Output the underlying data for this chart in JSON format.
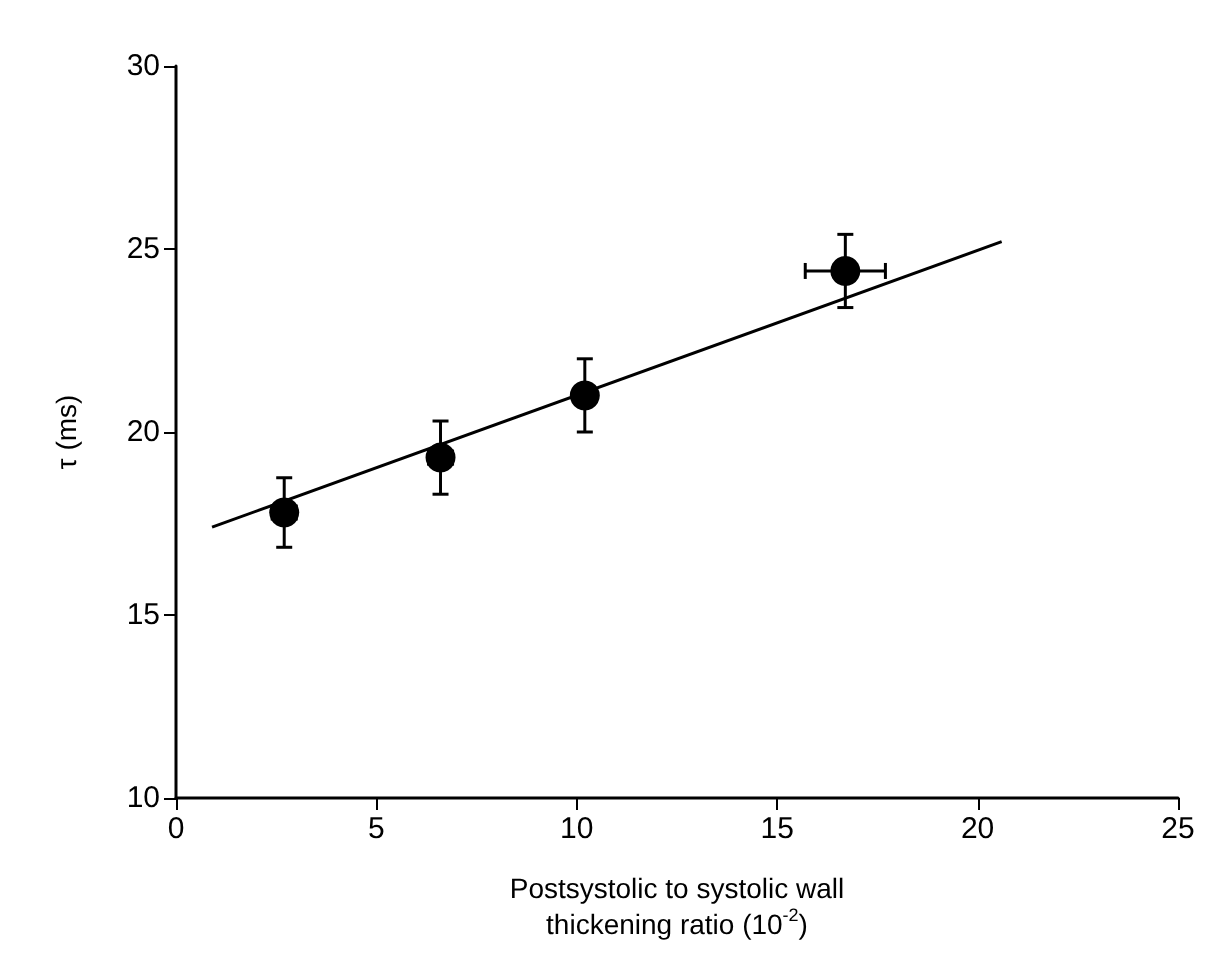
{
  "chart_data": {
    "type": "scatter",
    "xlabel": "Postsystolic to systolic wall\nthickening ratio (10$^{-2}$)",
    "ylabel": "τ (ms)",
    "xlim": [
      0,
      25
    ],
    "xticks": [
      0,
      5,
      10,
      15,
      20,
      25
    ],
    "ylim": [
      10,
      30
    ],
    "yticks": [
      10,
      15,
      20,
      25,
      30
    ],
    "grid": false,
    "marker": "circle",
    "series": [
      {
        "color": "#000000",
        "x": [
          2.7,
          6.6,
          10.2,
          16.7
        ],
        "values": [
          17.8,
          19.3,
          21.0,
          24.4
        ],
        "errors": [
          0.95,
          1.0,
          1.0,
          1.0
        ],
        "xerrors": [
          0.3,
          0.3,
          null,
          1.0
        ]
      },
      {
        "type": "line",
        "color": "#000000",
        "marker": "none",
        "x": [
          0.9,
          20.6
        ],
        "values": [
          17.4,
          25.2
        ]
      }
    ]
  }
}
